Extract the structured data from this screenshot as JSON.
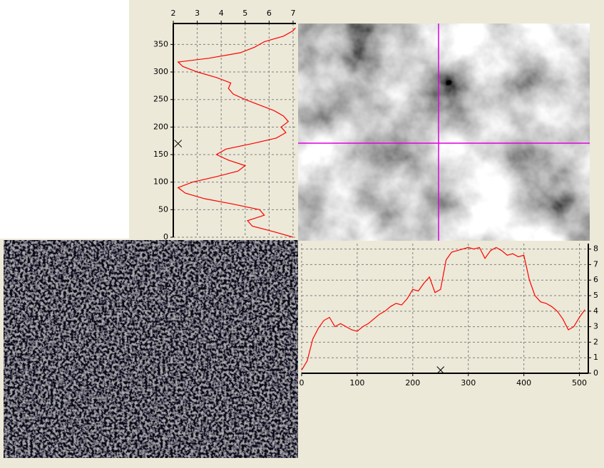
{
  "chart_data": [
    {
      "type": "line",
      "orientation": "vertical",
      "y": [
        0,
        10,
        20,
        30,
        40,
        50,
        60,
        70,
        80,
        90,
        100,
        110,
        120,
        130,
        140,
        150,
        160,
        170,
        180,
        190,
        200,
        210,
        220,
        230,
        240,
        250,
        260,
        270,
        280,
        290,
        300,
        310,
        318,
        325,
        335,
        345,
        355,
        365,
        375,
        380
      ],
      "values": [
        7.0,
        6.2,
        5.3,
        5.1,
        5.8,
        5.6,
        4.5,
        3.3,
        2.5,
        2.2,
        2.8,
        3.8,
        4.7,
        5.0,
        4.3,
        3.8,
        4.2,
        5.3,
        6.3,
        6.7,
        6.5,
        6.8,
        6.6,
        6.2,
        5.6,
        5.0,
        4.5,
        4.3,
        4.4,
        3.8,
        3.0,
        2.4,
        2.2,
        3.5,
        4.8,
        5.4,
        5.8,
        6.6,
        7.0,
        7.1
      ],
      "color": "#ff0000",
      "xlim": [
        2,
        7.12
      ],
      "xticks": [
        2,
        3,
        4,
        5,
        6,
        7
      ],
      "ylim": [
        0,
        388
      ],
      "yticks": [
        0,
        50,
        100,
        150,
        200,
        250,
        300,
        350
      ],
      "grid": true,
      "marker": [
        2.2,
        170
      ]
    },
    {
      "type": "line",
      "orientation": "horizontal",
      "x": [
        0,
        10,
        20,
        30,
        40,
        50,
        60,
        70,
        80,
        90,
        100,
        110,
        120,
        130,
        140,
        150,
        160,
        170,
        180,
        190,
        200,
        210,
        220,
        230,
        240,
        250,
        260,
        270,
        280,
        290,
        300,
        310,
        320,
        330,
        340,
        350,
        360,
        370,
        380,
        390,
        400,
        410,
        420,
        430,
        440,
        450,
        460,
        470,
        480,
        490,
        500,
        510
      ],
      "values": [
        0.2,
        0.8,
        2.2,
        2.9,
        3.4,
        3.6,
        3.0,
        3.2,
        3.0,
        2.8,
        2.7,
        3.0,
        3.2,
        3.5,
        3.8,
        4.0,
        4.3,
        4.5,
        4.4,
        4.8,
        5.4,
        5.3,
        5.8,
        6.2,
        5.2,
        5.4,
        7.3,
        7.8,
        7.9,
        8.0,
        8.1,
        8.0,
        8.1,
        7.4,
        7.9,
        8.1,
        7.9,
        7.6,
        7.7,
        7.5,
        7.6,
        6.0,
        5.0,
        4.6,
        4.5,
        4.3,
        4.0,
        3.5,
        2.8,
        3.0,
        3.6,
        4.1
      ],
      "color": "#ff0000",
      "xlim": [
        0,
        516
      ],
      "xticks": [
        0,
        100,
        200,
        300,
        400,
        500
      ],
      "ylim": [
        0,
        8.35
      ],
      "yticks": [
        0,
        1,
        2,
        3,
        4,
        5,
        6,
        7,
        8
      ],
      "grid": true,
      "marker": [
        250,
        0.2
      ]
    }
  ]
}
